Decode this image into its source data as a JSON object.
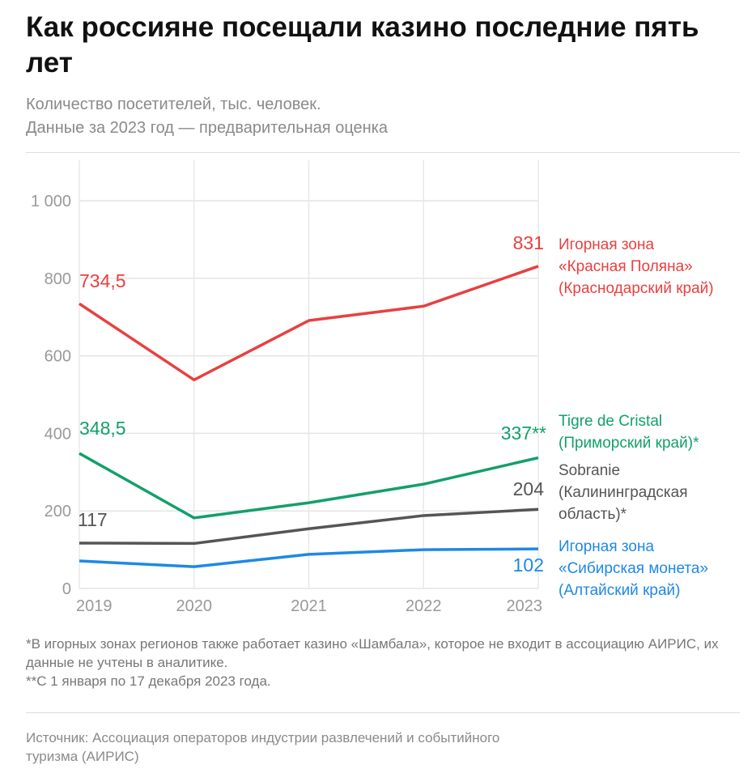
{
  "title": "Как россияне посещали казино последние пять лет",
  "subtitle": [
    "Количество посетителей, тыс. человек.",
    "Данные за 2023 год — предварительная оценка"
  ],
  "chart_data": {
    "type": "line",
    "x": [
      "2019",
      "2020",
      "2021",
      "2022",
      "2023"
    ],
    "ylim": [
      0,
      1000
    ],
    "yticks": [
      0,
      200,
      400,
      600,
      800,
      1000
    ],
    "ytick_labels": [
      "0",
      "200",
      "400",
      "600",
      "800",
      "1 000"
    ],
    "grid": true,
    "series": [
      {
        "name": "Игорная зона «Красная Поляна» (Краснодарский край)",
        "label_lines": [
          "Игорная зона",
          "«Красная Поляна»",
          "(Краснодарский край)"
        ],
        "color": "#e8403f",
        "values": [
          734.5,
          538,
          691,
          728,
          831
        ],
        "labels": {
          "start": "734,5",
          "end": "831"
        }
      },
      {
        "name": "Tigre de Cristal (Приморский край)*",
        "label_lines": [
          "Tigre de Cristal",
          "(Приморский край)*"
        ],
        "color": "#12a06a",
        "values": [
          348.5,
          182,
          221,
          269,
          337
        ],
        "labels": {
          "start": "348,5",
          "end": "337**"
        }
      },
      {
        "name": "Sobranie (Калининградская область)*",
        "label_lines": [
          "Sobranie",
          "(Калининградская",
          "область)*"
        ],
        "color": "#555555",
        "values": [
          117,
          116,
          154,
          188,
          204
        ],
        "labels": {
          "start": "117",
          "end": "204"
        }
      },
      {
        "name": "Игорная зона «Сибирская монета» (Алтайский край)",
        "label_lines": [
          "Игорная зона",
          "«Сибирская монета»",
          " (Алтайский край)"
        ],
        "color": "#1e88e5",
        "values": [
          71,
          56,
          88,
          100,
          102
        ],
        "labels": {
          "start": "",
          "end": "102"
        }
      }
    ]
  },
  "notes": [
    "*В игорных зонах регионов также работает казино «Шамбала», которое не входит в ассоциацию АИРИС, их данные не учтены в аналитике.",
    "**С 1 января по 17 декабря 2023 года."
  ],
  "source": "Источник: Ассоциация операторов индустрии развлечений и событийного туризма (АИРИС)"
}
